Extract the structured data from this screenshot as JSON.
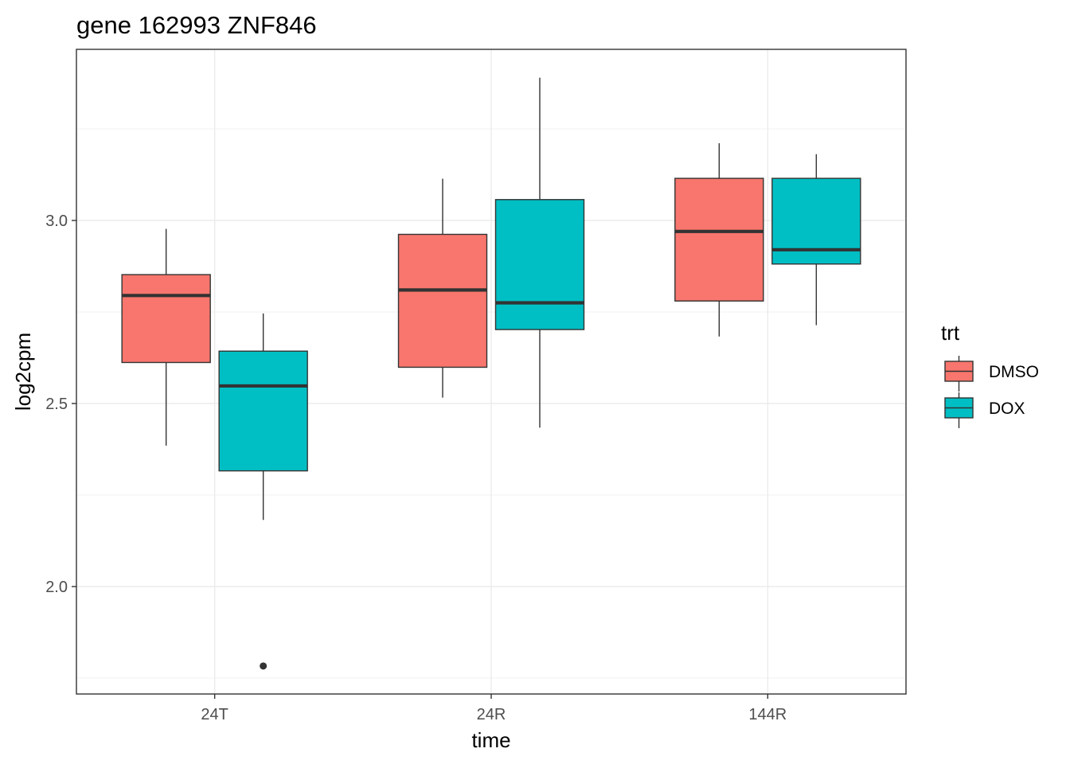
{
  "chart_data": {
    "type": "boxplot",
    "title": "gene 162993 ZNF846",
    "xlabel": "time",
    "ylabel": "log2cpm",
    "categories": [
      "24T",
      "24R",
      "144R"
    ],
    "ylim": [
      1.73,
      3.49
    ],
    "yticks": [
      2.0,
      2.5,
      3.0
    ],
    "ytick_labels": [
      "2.0",
      "2.5",
      "3.0"
    ],
    "y_minor_ticks": [
      1.75,
      2.25,
      2.75,
      3.25
    ],
    "grid": true,
    "legend": {
      "title": "trt",
      "position": "right"
    },
    "series": [
      {
        "name": "DMSO",
        "color": "#F8766D",
        "boxes": [
          {
            "category": "24T",
            "lower_whisker": 2.385,
            "q1": 2.612,
            "median": 2.795,
            "q3": 2.852,
            "upper_whisker": 2.977,
            "outliers": []
          },
          {
            "category": "24R",
            "lower_whisker": 2.516,
            "q1": 2.599,
            "median": 2.81,
            "q3": 2.962,
            "upper_whisker": 3.114,
            "outliers": []
          },
          {
            "category": "144R",
            "lower_whisker": 2.683,
            "q1": 2.78,
            "median": 2.97,
            "q3": 3.115,
            "upper_whisker": 3.211,
            "outliers": []
          }
        ]
      },
      {
        "name": "DOX",
        "color": "#00BFC4",
        "boxes": [
          {
            "category": "24T",
            "lower_whisker": 2.182,
            "q1": 2.316,
            "median": 2.548,
            "q3": 2.643,
            "upper_whisker": 2.746,
            "outliers": [
              1.783
            ]
          },
          {
            "category": "24R",
            "lower_whisker": 2.434,
            "q1": 2.702,
            "median": 2.775,
            "q3": 3.057,
            "upper_whisker": 3.39,
            "outliers": []
          },
          {
            "category": "144R",
            "lower_whisker": 2.714,
            "q1": 2.881,
            "median": 2.92,
            "q3": 3.115,
            "upper_whisker": 3.181,
            "outliers": []
          }
        ]
      }
    ]
  }
}
